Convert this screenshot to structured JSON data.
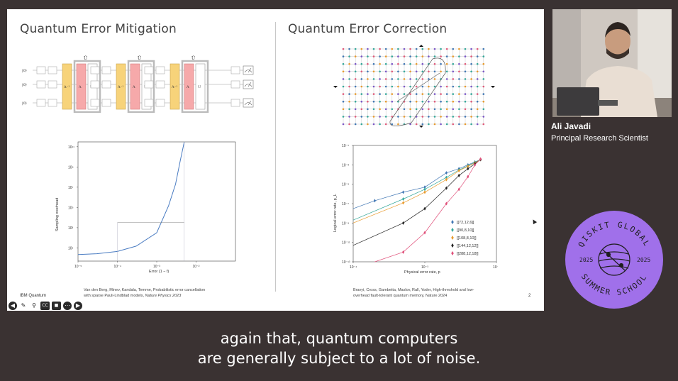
{
  "slide": {
    "left_title": "Quantum Error Mitigation",
    "right_title": "Quantum Error Correction",
    "left_citation_line1": "Van den Berg, Minev, Kandala, Temme, Probabilistic error cancellation",
    "left_citation_line2": "with sparse Pauli-Lindblad models,",
    "left_citation_journal": "Nature Physics 2023",
    "right_citation_line1": "Bravyi, Cross, Gambetta, Maslov, Rall, Yoder, High-threshold and low-",
    "right_citation_line2": "overhead fault-tolerant quantum memory, Nature 2024",
    "brand": "IBM Quantum",
    "page_number": "2",
    "circuit_labels": {
      "ket": "|0⟩",
      "u_tilde": "Ũ",
      "lam_inv": "Λ⁻¹",
      "lam": "Λ",
      "u": "U"
    }
  },
  "toolbar": {
    "icons": [
      "arrow-left-icon",
      "pen-icon",
      "zoom-icon",
      "closed-captions-icon",
      "camera-icon",
      "more-icon",
      "arrow-right-icon"
    ],
    "cc_label": "CC"
  },
  "speaker": {
    "name": "Ali Javadi",
    "title": "Principal Research Scientist"
  },
  "badge": {
    "top_text": "QISKIT GLOBAL",
    "bottom_text": "SUMMER SCHOOL",
    "year_left": "2025",
    "year_right": "2025",
    "color": "#a070ea"
  },
  "caption": {
    "line1": "again that, quantum computers",
    "line2": "are generally subject to a lot of noise."
  },
  "chart_data": [
    {
      "type": "line",
      "xlabel": "Error (1 − f)",
      "ylabel": "Sampling overhead",
      "xscale": "log",
      "yscale": "log",
      "xlim": [
        1e-05,
        0.1
      ],
      "ylim": [
        0.5,
        300000000000.0
      ],
      "xticks": [
        "10⁻⁵",
        "10⁻⁴",
        "10⁻³",
        "10⁻²"
      ],
      "yticks": [
        "10¹",
        "10³",
        "10⁵",
        "10⁷",
        "10⁹",
        "10¹¹"
      ],
      "series": [
        {
          "x": [
            1e-05,
            3e-05,
            0.0001,
            0.0003,
            0.001,
            0.002,
            0.003,
            0.004,
            0.005
          ],
          "y": [
            2.2,
            2.7,
            4.5,
            15,
            320,
            150000,
            20000000.0,
            5000000000.0,
            400000000000.0
          ]
        }
      ],
      "annotation": {
        "x_start": 0.0001,
        "x_end": 0.005,
        "y": 3200.0
      },
      "color": "#4a7cc2"
    },
    {
      "type": "line",
      "xlabel": "Physical error rate, p",
      "ylabel": "Logical error rate, p_L",
      "xscale": "log",
      "yscale": "log",
      "xlim": [
        0.0001,
        0.01
      ],
      "ylim": [
        1e-13,
        0.1
      ],
      "xticks": [
        "10⁻⁴",
        "10⁻³",
        "10⁻²"
      ],
      "yticks": [
        "10⁻¹³",
        "10⁻¹¹",
        "10⁻⁹",
        "10⁻⁷",
        "10⁻⁵",
        "10⁻³",
        "10⁻¹"
      ],
      "series": [
        {
          "name": "[[72,12,6]]",
          "color": "#4177b4",
          "x": [
            0.0001,
            0.0002,
            0.0005,
            0.001,
            0.002,
            0.003,
            0.004,
            0.005,
            0.006
          ],
          "y": [
            3e-08,
            2e-07,
            1.5e-06,
            5e-06,
            0.00015,
            0.0004,
            0.001,
            0.002,
            0.0035
          ]
        },
        {
          "name": "[[90,8,10]]",
          "color": "#35a89a",
          "x": [
            0.0001,
            0.0005,
            0.001,
            0.002,
            0.003,
            0.004,
            0.005,
            0.006
          ],
          "y": [
            2e-09,
            3e-07,
            3e-06,
            5e-05,
            0.0003,
            0.0008,
            0.0018,
            0.0035
          ]
        },
        {
          "name": "[[108,8,10]]",
          "color": "#e89b2e",
          "x": [
            0.0001,
            0.0005,
            0.001,
            0.002,
            0.003,
            0.004,
            0.005,
            0.006
          ],
          "y": [
            1e-09,
            1.2e-07,
            1.5e-06,
            3e-05,
            0.00025,
            0.0007,
            0.0016,
            0.0035
          ]
        },
        {
          "name": "[[144,12,12]]",
          "color": "#222222",
          "x": [
            0.0001,
            0.0005,
            0.001,
            0.002,
            0.003,
            0.004,
            0.005,
            0.006
          ],
          "y": [
            5e-12,
            1e-09,
            3e-08,
            4e-06,
            8e-05,
            0.0004,
            0.0013,
            0.0035
          ]
        },
        {
          "name": "[[288,12,18]]",
          "color": "#e0507a",
          "x": [
            0.0002,
            0.0005,
            0.001,
            0.002,
            0.003,
            0.004,
            0.005,
            0.006
          ],
          "y": [
            1e-13,
            1e-12,
            1e-10,
            1e-07,
            3e-06,
            6e-05,
            0.001,
            0.004
          ]
        }
      ],
      "legend": "right"
    }
  ]
}
